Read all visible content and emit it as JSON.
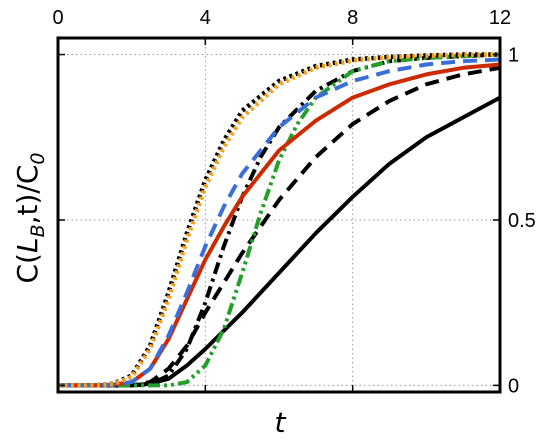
{
  "chart_data": {
    "type": "line",
    "title": "",
    "xlabel": "t",
    "ylabel": {
      "c": "C(",
      "l": "L",
      "b": "B",
      "rest": ",t)/C",
      "zero": "0"
    },
    "xlim": [
      0,
      12
    ],
    "ylim": [
      -0.02,
      1.05
    ],
    "x_ticks": [
      {
        "value": 0,
        "label": "0"
      },
      {
        "value": 4,
        "label": "4"
      },
      {
        "value": 8,
        "label": "8"
      },
      {
        "value": 12,
        "label": "12"
      }
    ],
    "y_ticks": [
      {
        "value": 0,
        "label": "0"
      },
      {
        "value": 0.5,
        "label": "0.5"
      },
      {
        "value": 1,
        "label": "1"
      }
    ],
    "grid": true,
    "series": [
      {
        "color": "#000000",
        "dash": "solid",
        "width": 4,
        "x": [
          0,
          1,
          2,
          2.5,
          3,
          3.5,
          4,
          5,
          6,
          7,
          8,
          9,
          10,
          11,
          12
        ],
        "y": [
          0,
          0,
          0,
          0.005,
          0.02,
          0.06,
          0.11,
          0.22,
          0.34,
          0.46,
          0.57,
          0.67,
          0.75,
          0.81,
          0.87
        ]
      },
      {
        "color": "#000000",
        "dash": "dash",
        "width": 4,
        "x": [
          0,
          1,
          2,
          2.5,
          3,
          3.5,
          4,
          4.5,
          5,
          6,
          7,
          8,
          9,
          10,
          11,
          12
        ],
        "y": [
          0,
          0,
          0,
          0.01,
          0.05,
          0.12,
          0.22,
          0.31,
          0.4,
          0.56,
          0.69,
          0.79,
          0.86,
          0.91,
          0.94,
          0.96
        ]
      },
      {
        "color": "#000000",
        "dash": "dashdot",
        "width": 4,
        "x": [
          0,
          1,
          2,
          2.5,
          3,
          3.5,
          4,
          4.5,
          5,
          5.5,
          6,
          7,
          8,
          9,
          10,
          11,
          12
        ],
        "y": [
          0,
          0,
          0,
          0.003,
          0.03,
          0.11,
          0.25,
          0.42,
          0.57,
          0.69,
          0.78,
          0.89,
          0.95,
          0.98,
          0.99,
          0.995,
          1.0
        ]
      },
      {
        "color": "#22a02a",
        "dash": "dashdotdot",
        "width": 4,
        "x": [
          0,
          1,
          2,
          3,
          3.5,
          4,
          4.5,
          5,
          5.5,
          6,
          6.5,
          7,
          8,
          9,
          10,
          11,
          12
        ],
        "y": [
          0,
          0,
          0,
          0,
          0.01,
          0.06,
          0.17,
          0.34,
          0.52,
          0.68,
          0.79,
          0.87,
          0.95,
          0.98,
          0.99,
          0.995,
          1.0
        ]
      },
      {
        "color": "#cc2a00",
        "dash": "solid",
        "width": 4,
        "x": [
          0,
          1,
          1.5,
          2,
          2.5,
          3,
          3.5,
          4,
          4.5,
          5,
          6,
          7,
          8,
          9,
          10,
          11,
          12
        ],
        "y": [
          0,
          0,
          0.002,
          0.01,
          0.05,
          0.14,
          0.26,
          0.38,
          0.48,
          0.57,
          0.71,
          0.8,
          0.87,
          0.91,
          0.94,
          0.96,
          0.97
        ]
      },
      {
        "color": "#3a6ed8",
        "dash": "dash",
        "width": 4,
        "x": [
          0,
          1,
          1.5,
          2,
          2.5,
          3,
          3.5,
          4,
          4.5,
          5,
          6,
          7,
          8,
          9,
          10,
          11,
          12
        ],
        "y": [
          0,
          0,
          0.002,
          0.01,
          0.05,
          0.15,
          0.28,
          0.42,
          0.54,
          0.64,
          0.78,
          0.87,
          0.92,
          0.95,
          0.97,
          0.98,
          0.985
        ]
      },
      {
        "color": "#000000",
        "dash": "dot",
        "width": 4.5,
        "x": [
          0,
          1,
          1.5,
          2,
          2.5,
          3,
          3.5,
          4,
          4.5,
          5,
          6,
          7,
          8,
          9,
          10,
          11,
          12
        ],
        "y": [
          0,
          0,
          0.005,
          0.03,
          0.12,
          0.28,
          0.46,
          0.62,
          0.74,
          0.83,
          0.92,
          0.965,
          0.985,
          0.993,
          0.997,
          1.0,
          1.0
        ]
      },
      {
        "color": "#f5a01e",
        "dash": "dot",
        "width": 4.5,
        "x": [
          0,
          1,
          1.5,
          2,
          2.5,
          3,
          3.5,
          4,
          4.5,
          5,
          6,
          7,
          8,
          9,
          10,
          11,
          12
        ],
        "y": [
          0,
          0,
          0.004,
          0.025,
          0.11,
          0.26,
          0.44,
          0.6,
          0.72,
          0.81,
          0.91,
          0.96,
          0.982,
          0.992,
          0.996,
          0.999,
          1.0
        ]
      }
    ]
  }
}
